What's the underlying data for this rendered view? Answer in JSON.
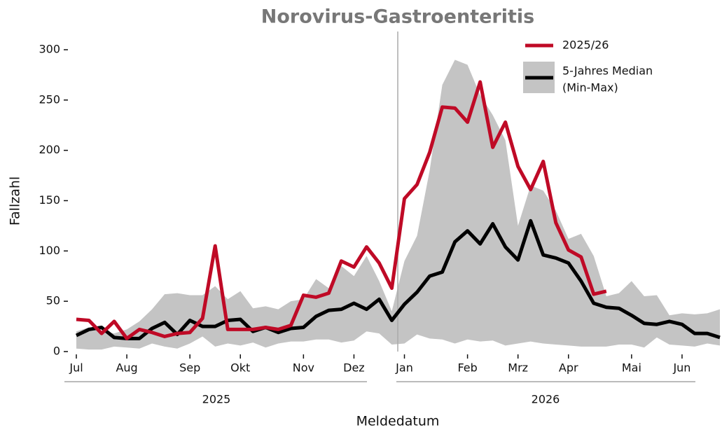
{
  "chart_data": {
    "type": "line",
    "title": "Norovirus-Gastroenteritis",
    "x_label": "Meldedatum",
    "y_label": "Fallzahl",
    "categories": [
      "Jul",
      null,
      null,
      null,
      "Aug",
      null,
      null,
      null,
      null,
      "Sep",
      null,
      null,
      null,
      "Okt",
      null,
      null,
      null,
      null,
      "Nov",
      null,
      null,
      null,
      "Dez",
      null,
      null,
      null,
      "Jan",
      null,
      null,
      null,
      null,
      "Feb",
      null,
      null,
      null,
      "Mrz",
      null,
      null,
      null,
      "Apr",
      null,
      null,
      null,
      null,
      "Mai",
      null,
      null,
      null,
      "Jun",
      null,
      null,
      null
    ],
    "year_labels": [
      "2025",
      "2026"
    ],
    "series": [
      {
        "name": "2025/26",
        "color": "#bf0a26",
        "values": [
          32,
          31,
          18,
          30,
          13,
          22,
          19,
          15,
          18,
          19,
          33,
          105,
          22,
          22,
          22,
          24,
          22,
          26,
          56,
          54,
          58,
          90,
          84,
          104,
          88,
          63,
          152,
          166,
          198,
          243,
          242,
          228,
          268,
          203,
          228,
          184,
          161,
          189,
          128,
          101,
          94,
          57,
          60,
          null,
          null,
          null,
          null,
          null,
          null,
          null,
          null,
          null
        ]
      },
      {
        "name": "5-Jahres Median",
        "color": "#000000",
        "values": [
          16,
          22,
          24,
          14,
          13,
          13,
          23,
          29,
          17,
          31,
          25,
          25,
          31,
          32,
          20,
          24,
          19,
          23,
          24,
          35,
          41,
          42,
          48,
          42,
          52,
          31,
          47,
          59,
          75,
          79,
          109,
          120,
          107,
          127,
          104,
          91,
          130,
          96,
          93,
          88,
          70,
          48,
          44,
          43,
          36,
          28,
          27,
          30,
          27,
          18,
          18,
          14
        ]
      }
    ],
    "band": {
      "name": "(Min-Max)",
      "color": "#c4c4c4",
      "max": [
        20,
        24,
        20,
        18,
        22,
        30,
        42,
        57,
        58,
        56,
        56,
        65,
        52,
        60,
        43,
        45,
        42,
        50,
        52,
        72,
        63,
        85,
        75,
        95,
        70,
        40,
        90,
        115,
        180,
        265,
        290,
        285,
        255,
        235,
        210,
        125,
        165,
        160,
        140,
        112,
        117,
        95,
        55,
        58,
        70,
        55,
        56,
        36,
        38,
        37,
        38,
        42
      ],
      "min": [
        3,
        2,
        2,
        5,
        4,
        3,
        8,
        5,
        3,
        8,
        15,
        5,
        8,
        6,
        9,
        4,
        8,
        10,
        10,
        12,
        12,
        9,
        11,
        20,
        18,
        7,
        8,
        17,
        13,
        12,
        8,
        12,
        10,
        11,
        6,
        8,
        10,
        8,
        7,
        6,
        5,
        5,
        5,
        7,
        7,
        4,
        14,
        7,
        6,
        5,
        8,
        6
      ]
    },
    "ylim": [
      0,
      300
    ],
    "yticks": [
      0,
      50,
      100,
      150,
      200,
      250,
      300
    ]
  }
}
